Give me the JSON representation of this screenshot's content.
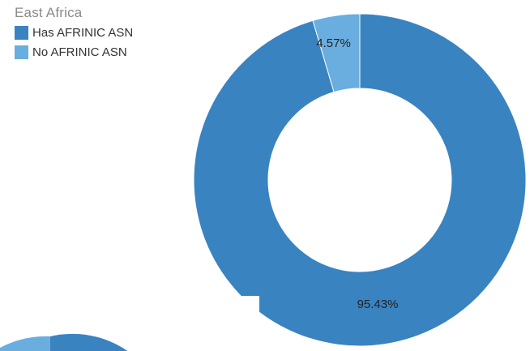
{
  "chart_data": {
    "type": "pie",
    "title": "East Africa",
    "donut": true,
    "legend_position": "top-left",
    "series": [
      {
        "name": "Has AFRINIC ASN",
        "value": 95.43,
        "label": "95.43%",
        "color": "#3a83c1"
      },
      {
        "name": "No AFRINIC ASN",
        "value": 4.57,
        "label": "4.57%",
        "color": "#69aedf"
      }
    ]
  }
}
